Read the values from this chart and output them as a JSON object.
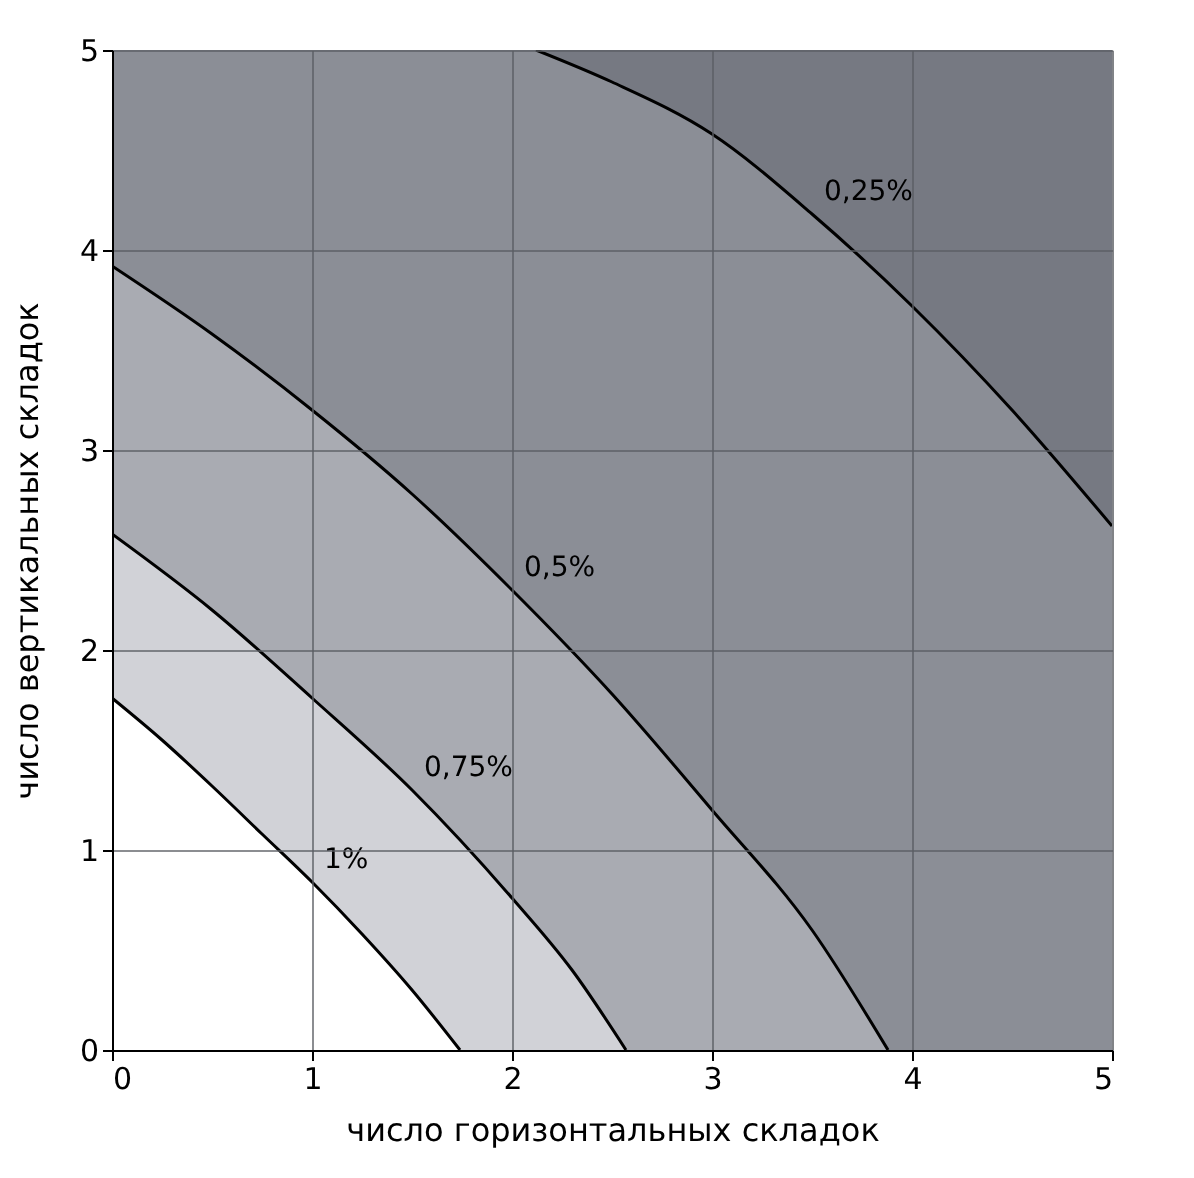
{
  "chart_data": {
    "type": "area",
    "xlabel": "число горизонтальных складок",
    "ylabel": "число вертикальных складок",
    "xlim": [
      0,
      5
    ],
    "ylim": [
      0,
      5
    ],
    "xticks": [
      0,
      1,
      2,
      3,
      4,
      5
    ],
    "yticks": [
      0,
      1,
      2,
      3,
      4,
      5
    ],
    "grid": true,
    "bands": [
      {
        "axis": "y",
        "from": 0,
        "to": 5,
        "color": "#767982"
      },
      {
        "axis": "x",
        "from": 0,
        "to": 2.12,
        "color": "#8b8e96"
      }
    ],
    "series": [
      {
        "name": "0,25%",
        "color": "#8b8e96",
        "x": [
          2.12,
          2.5,
          3,
          3.5,
          4,
          4.5,
          5
        ],
        "values": [
          5,
          4.84,
          4.58,
          4.18,
          3.72,
          3.2,
          2.62
        ]
      },
      {
        "name": "0,5%",
        "color": "#a9abb2",
        "x": [
          0,
          0.5,
          1,
          1.5,
          2,
          2.5,
          3,
          3.5,
          3.88
        ],
        "values": [
          3.92,
          3.58,
          3.2,
          2.78,
          2.3,
          1.78,
          1.2,
          0.6,
          0
        ]
      },
      {
        "name": "0,75%",
        "color": "#d1d2d7",
        "x": [
          0,
          0.5,
          1,
          1.5,
          2,
          2.3,
          2.57
        ],
        "values": [
          2.58,
          2.2,
          1.76,
          1.3,
          0.76,
          0.4,
          0
        ]
      },
      {
        "name": "1%",
        "color": "#ffffff",
        "x": [
          0,
          0.25,
          0.5,
          0.75,
          1,
          1.25,
          1.5,
          1.74
        ],
        "values": [
          1.76,
          1.55,
          1.32,
          1.08,
          0.84,
          0.58,
          0.3,
          0
        ]
      }
    ]
  }
}
